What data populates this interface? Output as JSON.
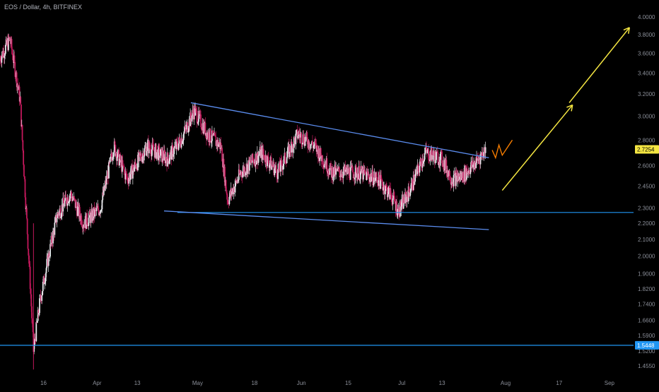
{
  "header": {
    "title": "EOS / Dollar, 4h, BITFINEX"
  },
  "colors": {
    "background": "#000000",
    "candle_up": "#e8e8ec",
    "candle_down": "#c2185b",
    "trendline": "#5b8def",
    "horizontal_line": "#2196f3",
    "projection_arrow": "#f5e642",
    "projection_zigzag": "#f57c00",
    "price_badge": "#f5e642",
    "level_badge": "#2196f3",
    "axis_text": "#8b8f99"
  },
  "chart_data": {
    "type": "candlestick",
    "title": "EOS / Dollar, 4h, BITFINEX",
    "y_scale": "log",
    "ylim": [
      1.42,
      4.1
    ],
    "xlim": [
      "2020-03-03",
      "2020-09-08"
    ],
    "x_tick_labels": [
      {
        "label": "16",
        "x": "2020-03-16"
      },
      {
        "label": "Apr",
        "x": "2020-04-01"
      },
      {
        "label": "13",
        "x": "2020-04-13"
      },
      {
        "label": "May",
        "x": "2020-05-01"
      },
      {
        "label": "18",
        "x": "2020-05-18"
      },
      {
        "label": "Jun",
        "x": "2020-06-01"
      },
      {
        "label": "15",
        "x": "2020-06-15"
      },
      {
        "label": "Jul",
        "x": "2020-07-01"
      },
      {
        "label": "13",
        "x": "2020-07-13"
      },
      {
        "label": "Aug",
        "x": "2020-08-01"
      },
      {
        "label": "17",
        "x": "2020-08-17"
      },
      {
        "label": "Sep",
        "x": "2020-09-01"
      }
    ],
    "y_tick_labels": [
      "4.0000",
      "3.8000",
      "3.6000",
      "3.4000",
      "3.2000",
      "3.0000",
      "2.8000",
      "2.6000",
      "2.4500",
      "2.3000",
      "2.2000",
      "2.1000",
      "2.0000",
      "1.9000",
      "1.8200",
      "1.7400",
      "1.6600",
      "1.5900",
      "1.5200",
      "1.4550"
    ],
    "last_price": "2.7254",
    "horizontal_levels": [
      {
        "price": 1.5448,
        "label": "1.5448"
      },
      {
        "price": 2.27,
        "label": ""
      }
    ],
    "price_path": [
      {
        "date": "2020-03-03",
        "close": 3.55
      },
      {
        "date": "2020-03-06",
        "close": 3.75
      },
      {
        "date": "2020-03-09",
        "close": 3.15
      },
      {
        "date": "2020-03-12",
        "close": 1.85
      },
      {
        "date": "2020-03-13",
        "close": 1.52
      },
      {
        "date": "2020-03-15",
        "close": 1.76
      },
      {
        "date": "2020-03-17",
        "close": 1.95
      },
      {
        "date": "2020-03-20",
        "close": 2.25
      },
      {
        "date": "2020-03-24",
        "close": 2.4
      },
      {
        "date": "2020-03-28",
        "close": 2.2
      },
      {
        "date": "2020-04-02",
        "close": 2.3
      },
      {
        "date": "2020-04-06",
        "close": 2.75
      },
      {
        "date": "2020-04-10",
        "close": 2.5
      },
      {
        "date": "2020-04-16",
        "close": 2.75
      },
      {
        "date": "2020-04-22",
        "close": 2.65
      },
      {
        "date": "2020-04-26",
        "close": 2.8
      },
      {
        "date": "2020-04-30",
        "close": 3.05
      },
      {
        "date": "2020-05-04",
        "close": 2.85
      },
      {
        "date": "2020-05-08",
        "close": 2.75
      },
      {
        "date": "2020-05-10",
        "close": 2.35
      },
      {
        "date": "2020-05-14",
        "close": 2.55
      },
      {
        "date": "2020-05-20",
        "close": 2.7
      },
      {
        "date": "2020-05-25",
        "close": 2.55
      },
      {
        "date": "2020-05-31",
        "close": 2.85
      },
      {
        "date": "2020-06-05",
        "close": 2.75
      },
      {
        "date": "2020-06-10",
        "close": 2.55
      },
      {
        "date": "2020-06-18",
        "close": 2.55
      },
      {
        "date": "2020-06-24",
        "close": 2.5
      },
      {
        "date": "2020-06-28",
        "close": 2.38
      },
      {
        "date": "2020-06-30",
        "close": 2.28
      },
      {
        "date": "2020-07-03",
        "close": 2.4
      },
      {
        "date": "2020-07-08",
        "close": 2.7
      },
      {
        "date": "2020-07-13",
        "close": 2.65
      },
      {
        "date": "2020-07-16",
        "close": 2.5
      },
      {
        "date": "2020-07-19",
        "close": 2.52
      },
      {
        "date": "2020-07-23",
        "close": 2.62
      },
      {
        "date": "2020-07-26",
        "close": 2.7254
      }
    ],
    "trendlines": [
      {
        "name": "upper-trendline",
        "from": {
          "date": "2020-04-29",
          "price": 3.12
        },
        "to": {
          "date": "2020-07-27",
          "price": 2.66
        }
      },
      {
        "name": "lower-trendline",
        "from": {
          "date": "2020-04-21",
          "price": 2.28
        },
        "to": {
          "date": "2020-07-27",
          "price": 2.16
        }
      }
    ],
    "projection_zigzag": [
      {
        "date": "2020-07-28",
        "price": 2.72
      },
      {
        "date": "2020-07-29",
        "price": 2.66
      },
      {
        "date": "2020-07-30",
        "price": 2.76
      },
      {
        "date": "2020-07-31",
        "price": 2.68
      },
      {
        "date": "2020-08-03",
        "price": 2.8
      }
    ],
    "projection_arrows": [
      {
        "from": {
          "date": "2020-07-31",
          "price": 2.42
        },
        "to": {
          "date": "2020-08-21",
          "price": 3.1
        }
      },
      {
        "from": {
          "date": "2020-08-20",
          "price": 3.12
        },
        "to": {
          "date": "2020-09-07",
          "price": 3.88
        }
      }
    ]
  }
}
